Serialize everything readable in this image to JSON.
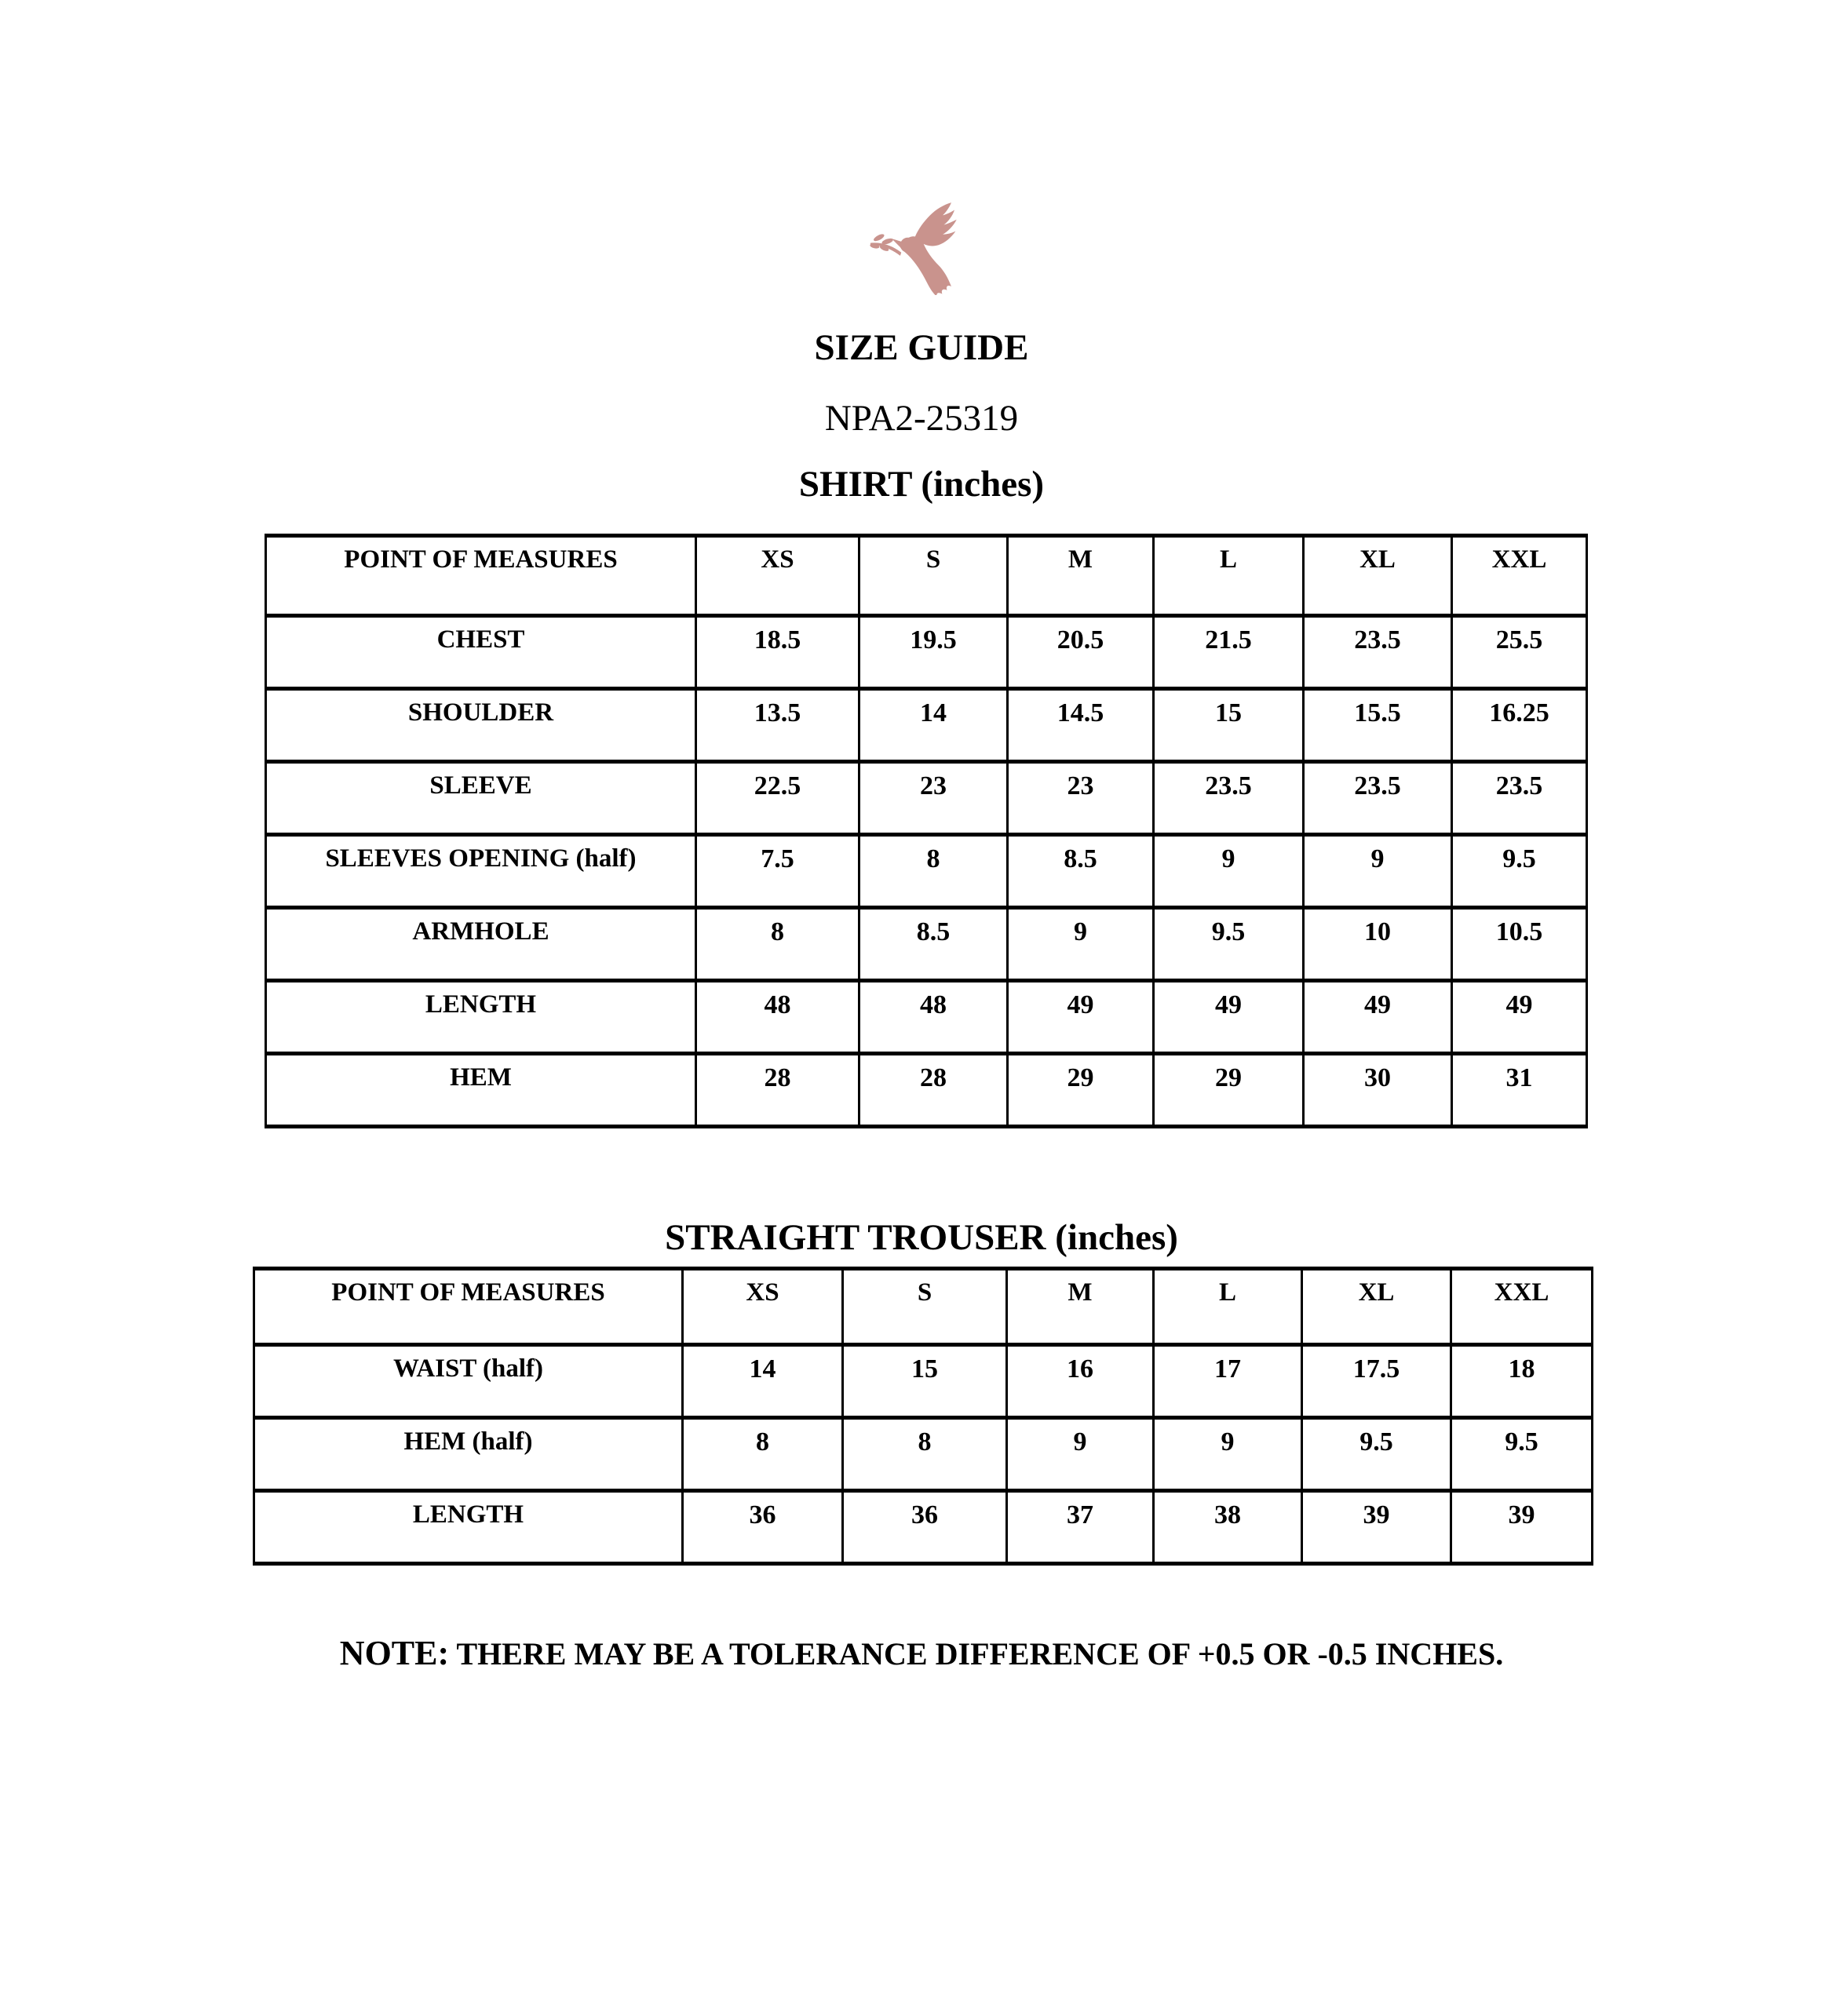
{
  "page": {
    "title": "SIZE GUIDE",
    "style_number": "NPA2-25319",
    "logo": {
      "name": "dove-with-olive-branch",
      "color": "#c9938d"
    },
    "note": {
      "label": "NOTE:",
      "text": "THERE MAY BE A TOLERANCE DIFFERENCE OF +0.5 OR -0.5 INCHES."
    }
  },
  "shirt_table": {
    "heading": "SHIRT (inches)",
    "columns": [
      "POINT OF MEASURES",
      "XS",
      "S",
      "M",
      "L",
      "XL",
      "XXL"
    ],
    "rows": [
      {
        "label": "CHEST",
        "values": [
          "18.5",
          "19.5",
          "20.5",
          "21.5",
          "23.5",
          "25.5"
        ]
      },
      {
        "label": "SHOULDER",
        "values": [
          "13.5",
          "14",
          "14.5",
          "15",
          "15.5",
          "16.25"
        ]
      },
      {
        "label": "SLEEVE",
        "values": [
          "22.5",
          "23",
          "23",
          "23.5",
          "23.5",
          "23.5"
        ]
      },
      {
        "label": "SLEEVES OPENING (half)",
        "values": [
          "7.5",
          "8",
          "8.5",
          "9",
          "9",
          "9.5"
        ]
      },
      {
        "label": "ARMHOLE",
        "values": [
          "8",
          "8.5",
          "9",
          "9.5",
          "10",
          "10.5"
        ]
      },
      {
        "label": "LENGTH",
        "values": [
          "48",
          "48",
          "49",
          "49",
          "49",
          "49"
        ]
      },
      {
        "label": "HEM",
        "values": [
          "28",
          "28",
          "29",
          "29",
          "30",
          "31"
        ]
      }
    ]
  },
  "trouser_table": {
    "heading": "STRAIGHT TROUSER (inches)",
    "columns": [
      "POINT OF MEASURES",
      "XS",
      "S",
      "M",
      "L",
      "XL",
      "XXL"
    ],
    "rows": [
      {
        "label": "WAIST (half)",
        "values": [
          "14",
          "15",
          "16",
          "17",
          "17.5",
          "18"
        ]
      },
      {
        "label": "HEM (half)",
        "values": [
          "8",
          "8",
          "9",
          "9",
          "9.5",
          "9.5"
        ]
      },
      {
        "label": "LENGTH",
        "values": [
          "36",
          "36",
          "37",
          "38",
          "39",
          "39"
        ]
      }
    ]
  }
}
